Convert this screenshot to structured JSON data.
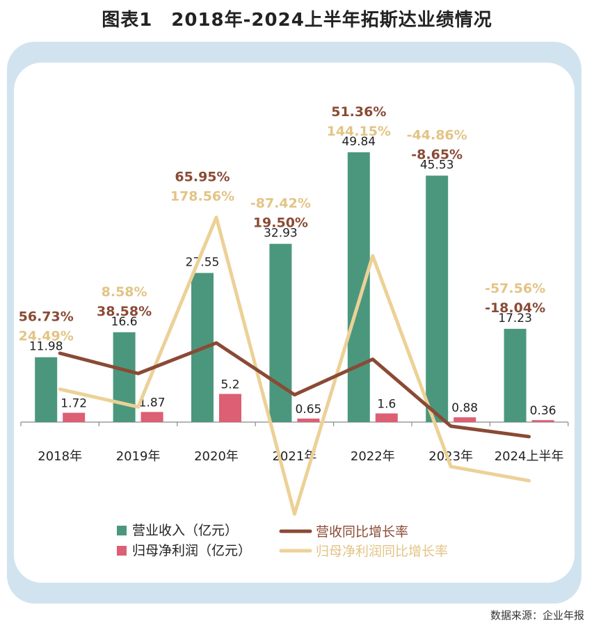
{
  "title": "图表1　2018年-2024上半年拓斯达业绩情况",
  "source": "数据来源：企业年报",
  "colors": {
    "revenue_bar": "#4b977d",
    "profit_bar": "#dc5f74",
    "revenue_growth_line": "#8a4a35",
    "profit_growth_line": "#ecd197",
    "revenue_growth_text": "#8a4a35",
    "profit_growth_text": "#e3c485",
    "frame": "#d1e3ef"
  },
  "chart_data": {
    "type": "bar",
    "categories": [
      "2018年",
      "2019年",
      "2020年",
      "2021年",
      "2022年",
      "2023年",
      "2024上半年"
    ],
    "series": [
      {
        "name": "营业收入（亿元）",
        "type": "bar",
        "values": [
          11.98,
          16.6,
          27.55,
          32.93,
          49.84,
          45.53,
          17.23
        ],
        "labels": [
          "11.98",
          "16.6",
          "27.55",
          "32.93",
          "49.84",
          "45.53",
          "17.23"
        ]
      },
      {
        "name": "归母净利润（亿元）",
        "type": "bar",
        "values": [
          1.72,
          1.87,
          5.2,
          0.65,
          1.6,
          0.88,
          0.36
        ],
        "labels": [
          "1.72",
          "1.87",
          "5.2",
          "0.65",
          "1.6",
          "0.88",
          "0.36"
        ]
      },
      {
        "name": "营收同比增长率",
        "type": "line",
        "values": [
          56.73,
          38.58,
          65.95,
          19.5,
          51.36,
          -8.65,
          -18.04
        ],
        "labels": [
          "56.73%",
          "38.58%",
          "65.95%",
          "19.50%",
          "51.36%",
          "-8.65%",
          "-18.04%"
        ]
      },
      {
        "name": "归母净利润同比增长率",
        "type": "line",
        "values": [
          24.49,
          8.58,
          178.56,
          -87.42,
          144.15,
          -44.86,
          -57.56
        ],
        "labels": [
          "24.49%",
          "8.58%",
          "178.56%",
          "-87.42%",
          "144.15%",
          "-44.86%",
          "-57.56%"
        ]
      }
    ],
    "bar_ylim": [
      0,
      55
    ],
    "line_ylim": [
      -100,
      200
    ],
    "grid": false,
    "legend_position": "bottom"
  }
}
